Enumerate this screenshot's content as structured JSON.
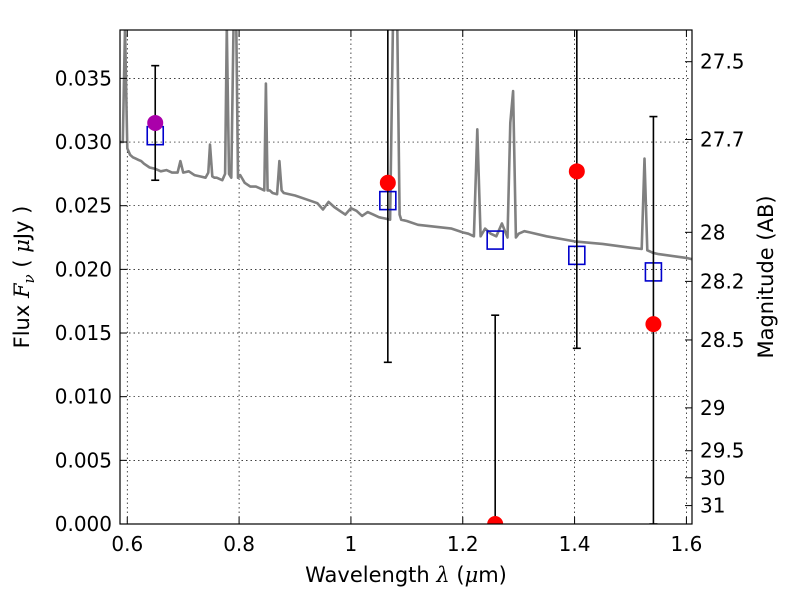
{
  "chart_data": {
    "type": "scatter",
    "xlabel": {
      "prefix": "Wavelength  ",
      "symbol": "λ",
      "unit_open": " (",
      "unit_mu": "μ",
      "unit_rest": "m)"
    },
    "ylabel": {
      "prefix": "Flux  ",
      "symbol": "F",
      "sub": "ν",
      "unit_open": "  ( ",
      "unit_mu": "μ",
      "unit_rest": "Jy )"
    },
    "y2label": "Magnitude (AB)",
    "xlim": [
      0.587,
      1.61
    ],
    "ylim": [
      0.0,
      0.0388
    ],
    "grid": true,
    "x_ticks": [
      {
        "value": 0.6,
        "label": "0.6"
      },
      {
        "value": 0.8,
        "label": "0.8"
      },
      {
        "value": 1.0,
        "label": "1"
      },
      {
        "value": 1.2,
        "label": "1.2"
      },
      {
        "value": 1.4,
        "label": "1.4"
      },
      {
        "value": 1.6,
        "label": "1.6"
      }
    ],
    "y_ticks": [
      {
        "value": 0.0,
        "label": "0.000"
      },
      {
        "value": 0.005,
        "label": "0.005"
      },
      {
        "value": 0.01,
        "label": "0.010"
      },
      {
        "value": 0.015,
        "label": "0.015"
      },
      {
        "value": 0.02,
        "label": "0.020"
      },
      {
        "value": 0.025,
        "label": "0.025"
      },
      {
        "value": 0.03,
        "label": "0.030"
      },
      {
        "value": 0.035,
        "label": "0.035"
      }
    ],
    "y2_ticks": [
      {
        "mag": 27.5,
        "label": "27.5"
      },
      {
        "mag": 27.7,
        "label": "27.7"
      },
      {
        "mag": 28.0,
        "label": "28"
      },
      {
        "mag": 28.2,
        "label": "28.2"
      },
      {
        "mag": 28.5,
        "label": "28.5"
      },
      {
        "mag": 29.0,
        "label": "29"
      },
      {
        "mag": 29.5,
        "label": "29.5"
      },
      {
        "mag": 30.0,
        "label": "30"
      },
      {
        "mag": 31.0,
        "label": "31"
      }
    ],
    "series": [
      {
        "kind": "line",
        "color": "#808080",
        "x": [
          0.587,
          0.592,
          0.596,
          0.6,
          0.605,
          0.61,
          0.615,
          0.62,
          0.625,
          0.63,
          0.64,
          0.65,
          0.66,
          0.67,
          0.68,
          0.69,
          0.695,
          0.7,
          0.71,
          0.72,
          0.73,
          0.74,
          0.745,
          0.748,
          0.752,
          0.756,
          0.76,
          0.77,
          0.775,
          0.778,
          0.782,
          0.786,
          0.79,
          0.795,
          0.798,
          0.802,
          0.806,
          0.81,
          0.82,
          0.83,
          0.84,
          0.845,
          0.848,
          0.851,
          0.855,
          0.86,
          0.868,
          0.872,
          0.876,
          0.88,
          0.9,
          0.92,
          0.94,
          0.95,
          0.96,
          0.97,
          0.98,
          0.99,
          1.0,
          1.01,
          1.02,
          1.03,
          1.04,
          1.05,
          1.06,
          1.07,
          1.075,
          1.079,
          1.083,
          1.087,
          1.09,
          1.1,
          1.12,
          1.14,
          1.16,
          1.18,
          1.2,
          1.21,
          1.22,
          1.226,
          1.232,
          1.24,
          1.25,
          1.26,
          1.27,
          1.28,
          1.285,
          1.29,
          1.295,
          1.3,
          1.31,
          1.32,
          1.35,
          1.4,
          1.45,
          1.5,
          1.52,
          1.525,
          1.53,
          1.535,
          1.54,
          1.55,
          1.6,
          1.61
        ],
        "y": [
          0.03,
          0.03,
          0.039,
          0.0295,
          0.029,
          0.0288,
          0.0287,
          0.0286,
          0.0285,
          0.0283,
          0.028,
          0.0279,
          0.0277,
          0.0278,
          0.0276,
          0.0276,
          0.0285,
          0.0276,
          0.0277,
          0.0274,
          0.0273,
          0.0272,
          0.0276,
          0.0298,
          0.0273,
          0.0272,
          0.0272,
          0.027,
          0.0275,
          0.039,
          0.0275,
          0.0272,
          0.039,
          0.039,
          0.0272,
          0.0274,
          0.0271,
          0.0268,
          0.0265,
          0.0265,
          0.0263,
          0.0262,
          0.0346,
          0.0262,
          0.0262,
          0.026,
          0.0259,
          0.0285,
          0.0262,
          0.026,
          0.0258,
          0.0255,
          0.0252,
          0.0247,
          0.0253,
          0.0249,
          0.0246,
          0.0243,
          0.0248,
          0.0246,
          0.0242,
          0.0245,
          0.0243,
          0.0241,
          0.024,
          0.0239,
          0.039,
          0.039,
          0.039,
          0.0243,
          0.0239,
          0.0238,
          0.0235,
          0.0234,
          0.0233,
          0.0232,
          0.0229,
          0.0228,
          0.0226,
          0.031,
          0.0226,
          0.0232,
          0.0228,
          0.0226,
          0.0236,
          0.0225,
          0.0315,
          0.034,
          0.0225,
          0.0228,
          0.023,
          0.0229,
          0.0226,
          0.0222,
          0.022,
          0.0217,
          0.0216,
          0.0287,
          0.0215,
          0.0214,
          0.0213,
          0.0212,
          0.0209,
          0.0208
        ]
      },
      {
        "kind": "model",
        "color": "#0000cc",
        "x": [
          0.65,
          1.066,
          1.258,
          1.404,
          1.541
        ],
        "y": [
          0.0305,
          0.0254,
          0.0223,
          0.0211,
          0.0198
        ]
      },
      {
        "kind": "observed",
        "color": "#ff0000",
        "x": [
          1.066,
          1.258,
          1.404,
          1.541
        ],
        "y": [
          0.0268,
          0.0,
          0.0277,
          0.0157
        ],
        "yerr_low": [
          0.0127,
          0.0,
          0.0138,
          0.0
        ],
        "yerr_high": [
          0.039,
          0.0164,
          0.039,
          0.032
        ]
      },
      {
        "kind": "observed",
        "color": "#aa00aa",
        "x": [
          0.65
        ],
        "y": [
          0.0315
        ],
        "yerr_low": [
          0.027
        ],
        "yerr_high": [
          0.036
        ]
      }
    ]
  }
}
